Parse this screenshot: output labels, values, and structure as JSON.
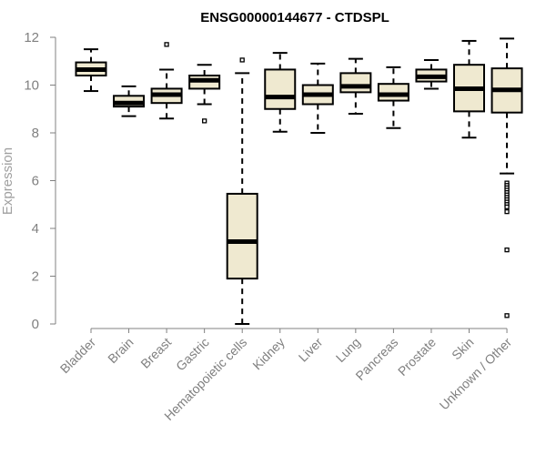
{
  "chart_data": {
    "type": "boxplot",
    "title": "ENSG00000144677 - CTDSPL",
    "ylabel": "Expression",
    "xlabel": "",
    "ylim": [
      0,
      12
    ],
    "yticks": [
      0,
      2,
      4,
      6,
      8,
      10,
      12
    ],
    "box_fill": "#efe9d0",
    "categories": [
      "Bladder",
      "Brain",
      "Breast",
      "Gastric",
      "Hematopoietic cells",
      "Kidney",
      "Liver",
      "Lung",
      "Pancreas",
      "Prostate",
      "Skin",
      "Unknown / Other"
    ],
    "series": [
      {
        "category": "Bladder",
        "whisker_low": 9.75,
        "q1": 10.4,
        "median": 10.65,
        "q3": 10.95,
        "whisker_high": 11.5,
        "outliers": []
      },
      {
        "category": "Brain",
        "whisker_low": 8.7,
        "q1": 9.1,
        "median": 9.25,
        "q3": 9.55,
        "whisker_high": 9.95,
        "outliers": []
      },
      {
        "category": "Breast",
        "whisker_low": 8.6,
        "q1": 9.25,
        "median": 9.6,
        "q3": 9.85,
        "whisker_high": 10.65,
        "outliers": [
          11.7
        ]
      },
      {
        "category": "Gastric",
        "whisker_low": 9.2,
        "q1": 9.85,
        "median": 10.2,
        "q3": 10.4,
        "whisker_high": 10.85,
        "outliers": [
          8.5
        ]
      },
      {
        "category": "Hematopoietic cells",
        "whisker_low": 0.0,
        "q1": 1.9,
        "median": 3.45,
        "q3": 5.45,
        "whisker_high": 10.5,
        "outliers": [
          11.05
        ]
      },
      {
        "category": "Kidney",
        "whisker_low": 8.05,
        "q1": 9.0,
        "median": 9.5,
        "q3": 10.65,
        "whisker_high": 11.35,
        "outliers": []
      },
      {
        "category": "Liver",
        "whisker_low": 8.0,
        "q1": 9.2,
        "median": 9.6,
        "q3": 10.0,
        "whisker_high": 10.9,
        "outliers": []
      },
      {
        "category": "Lung",
        "whisker_low": 8.8,
        "q1": 9.7,
        "median": 9.95,
        "q3": 10.5,
        "whisker_high": 11.1,
        "outliers": []
      },
      {
        "category": "Pancreas",
        "whisker_low": 8.2,
        "q1": 9.35,
        "median": 9.6,
        "q3": 10.05,
        "whisker_high": 10.75,
        "outliers": []
      },
      {
        "category": "Prostate",
        "whisker_low": 9.85,
        "q1": 10.15,
        "median": 10.35,
        "q3": 10.65,
        "whisker_high": 11.05,
        "outliers": []
      },
      {
        "category": "Skin",
        "whisker_low": 7.8,
        "q1": 8.9,
        "median": 9.85,
        "q3": 10.85,
        "whisker_high": 11.85,
        "outliers": []
      },
      {
        "category": "Unknown / Other",
        "whisker_low": 6.3,
        "q1": 8.85,
        "median": 9.8,
        "q3": 10.7,
        "whisker_high": 11.95,
        "outliers": [
          5.9,
          5.8,
          5.7,
          5.6,
          5.5,
          5.4,
          5.3,
          5.2,
          5.1,
          5.0,
          4.9,
          4.7,
          3.1,
          0.35
        ]
      }
    ]
  }
}
